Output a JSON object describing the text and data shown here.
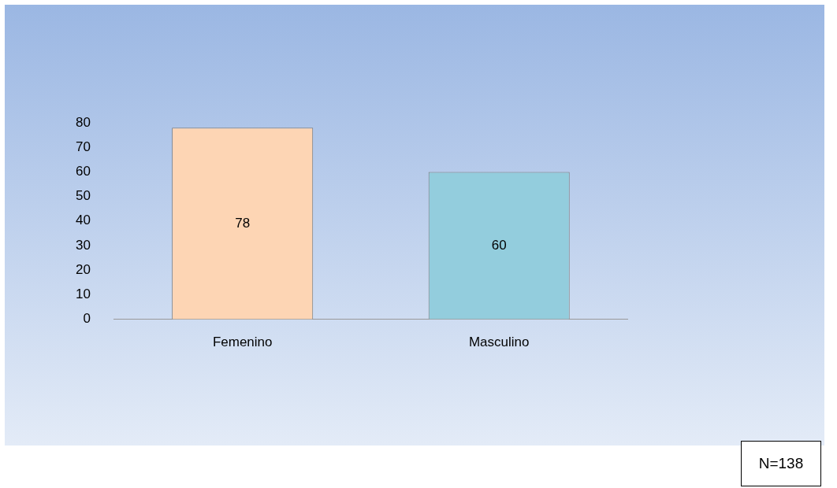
{
  "chart_data": {
    "type": "bar",
    "categories": [
      "Femenino",
      "Masculino"
    ],
    "values": [
      78,
      60
    ],
    "colors": [
      "#fdd5b4",
      "#93cddd"
    ],
    "ylim": [
      0,
      80
    ],
    "yticks": [
      0,
      10,
      20,
      30,
      40,
      50,
      60,
      70,
      80
    ],
    "grid": false,
    "legend": false,
    "data_labels": true,
    "annotations": [
      "N=138"
    ]
  }
}
